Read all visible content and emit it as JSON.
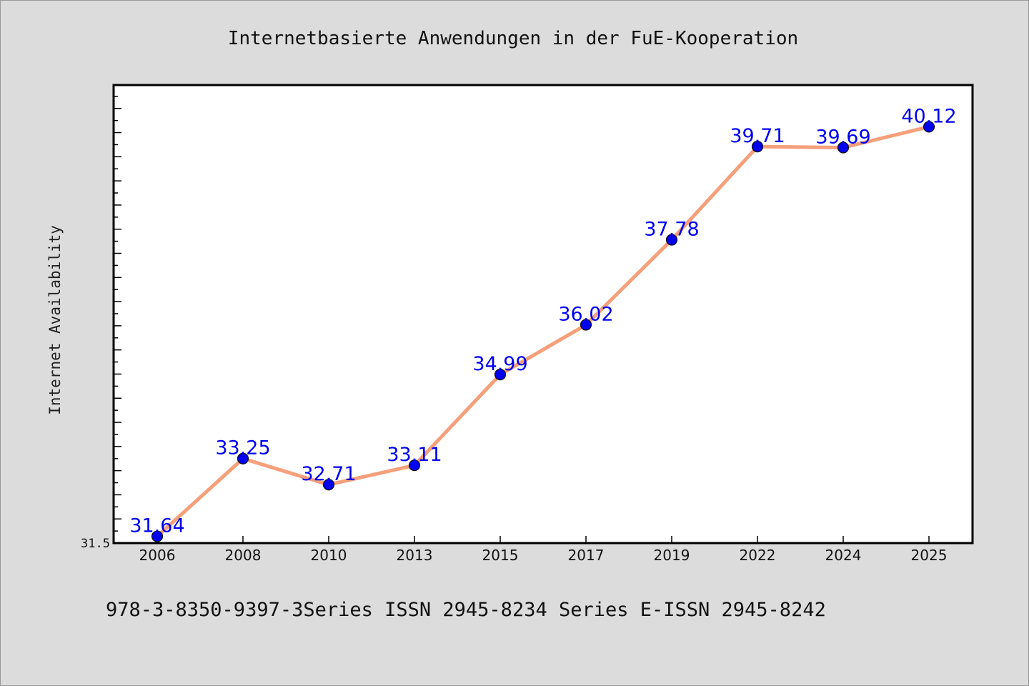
{
  "chart_data": {
    "type": "line",
    "title": "Internetbasierte Anwendungen in der FuE-Kooperation",
    "xlabel": "",
    "ylabel": "Internet Availability",
    "categories": [
      "2006",
      "2008",
      "2010",
      "2013",
      "2015",
      "2017",
      "2019",
      "2022",
      "2024",
      "2025"
    ],
    "series": [
      {
        "values": [
          31.64,
          33.25,
          32.71,
          33.11,
          34.99,
          36.02,
          37.78,
          39.71,
          39.69,
          40.12
        ],
        "data_labels": [
          "31.64",
          "33.25",
          "32.71",
          "33.11",
          "34.99",
          "36.02",
          "37.78",
          "39.71",
          "39.69",
          "40.12"
        ],
        "line_color": "#f5a07a",
        "marker_color": "#0000ee"
      }
    ],
    "ylim": [
      31.5,
      40.97
    ],
    "y_tick_labels": [
      "31.5"
    ],
    "grid": false,
    "label_color": "#0000ee"
  },
  "footer": {
    "text": "978-3-8350-9397-3Series ISSN 2945-8234 Series E-ISSN 2945-8242"
  }
}
